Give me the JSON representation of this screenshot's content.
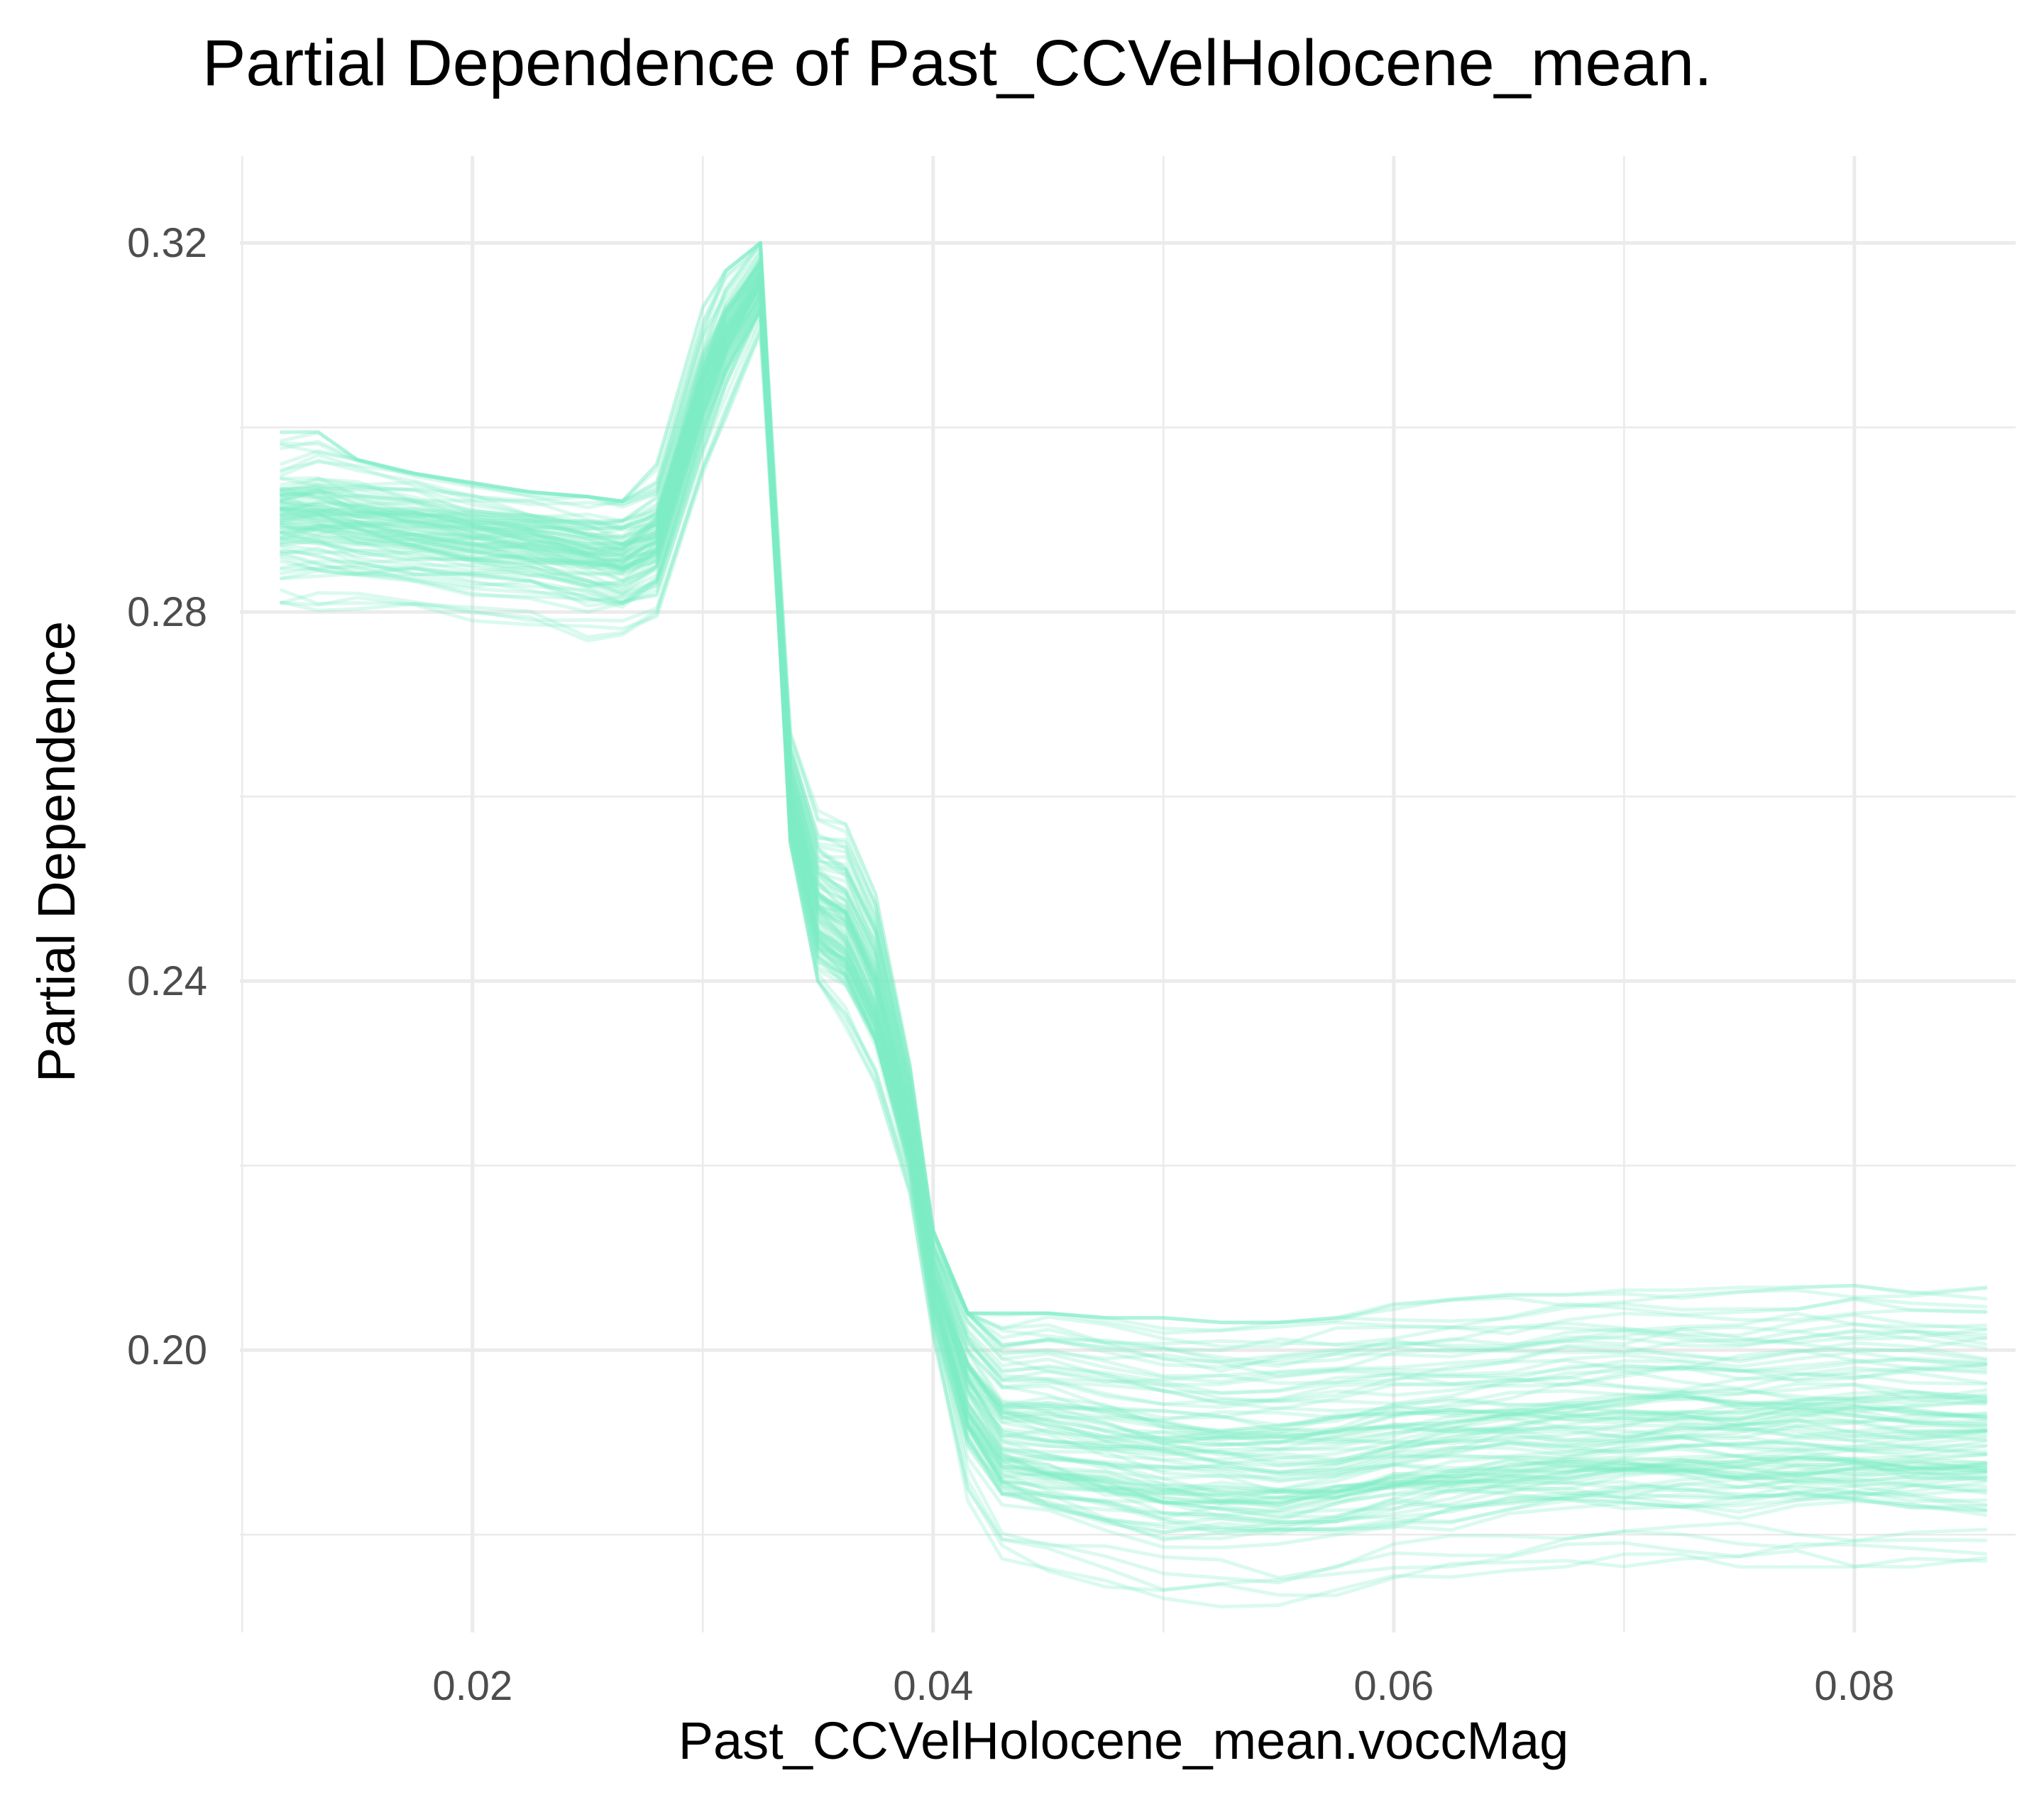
{
  "chart_data": {
    "type": "line",
    "title": "Partial Dependence of Past_CCVelHolocene_mean.",
    "xlabel": "Past_CCVelHolocene_mean.voccMag",
    "ylabel": "Partial Dependence",
    "xlim": [
      0.0099,
      0.087
    ],
    "ylim": [
      0.1694,
      0.3294
    ],
    "x_ticks": [
      "0.02",
      "0.04",
      "0.06",
      "0.08"
    ],
    "x_tick_values": [
      0.02,
      0.04,
      0.06,
      0.08
    ],
    "x_minor_values": [
      0.01,
      0.03,
      0.05,
      0.07
    ],
    "y_ticks": [
      "0.20",
      "0.24",
      "0.28",
      "0.32"
    ],
    "y_tick_values": [
      0.2,
      0.24,
      0.28,
      0.32
    ],
    "y_minor_values": [
      0.18,
      0.22,
      0.26,
      0.3
    ],
    "grid": true,
    "legend": "none",
    "line_color": "#7fecc6",
    "n_lines": 100,
    "x": [
      0.0117,
      0.0133,
      0.015,
      0.0175,
      0.02,
      0.0225,
      0.025,
      0.0265,
      0.028,
      0.03,
      0.031,
      0.0325,
      0.0338,
      0.035,
      0.0362,
      0.0375,
      0.039,
      0.04,
      0.0415,
      0.043,
      0.045,
      0.0475,
      0.05,
      0.0525,
      0.055,
      0.0575,
      0.06,
      0.0625,
      0.065,
      0.0675,
      0.07,
      0.0725,
      0.075,
      0.0775,
      0.08,
      0.0825,
      0.0857
    ],
    "mean_curve": [
      0.2905,
      0.2905,
      0.2898,
      0.2892,
      0.2882,
      0.2876,
      0.2865,
      0.286,
      0.288,
      0.304,
      0.31,
      0.316,
      0.26,
      0.248,
      0.246,
      0.239,
      0.224,
      0.208,
      0.197,
      0.192,
      0.1915,
      0.1905,
      0.1895,
      0.1892,
      0.189,
      0.1895,
      0.1905,
      0.191,
      0.1915,
      0.1918,
      0.192,
      0.1922,
      0.192,
      0.1922,
      0.1922,
      0.192,
      0.192
    ],
    "band_low": [
      0.281,
      0.28,
      0.2785,
      0.2775,
      0.277,
      0.276,
      0.275,
      0.275,
      0.279,
      0.295,
      0.3,
      0.309,
      0.255,
      0.24,
      0.235,
      0.229,
      0.217,
      0.2,
      0.179,
      0.176,
      0.173,
      0.172,
      0.171,
      0.171,
      0.1705,
      0.1715,
      0.174,
      0.175,
      0.176,
      0.176,
      0.1765,
      0.1765,
      0.1765,
      0.1765,
      0.1765,
      0.1765,
      0.1765
    ],
    "band_high": [
      0.2995,
      0.2995,
      0.2965,
      0.295,
      0.294,
      0.293,
      0.2925,
      0.292,
      0.296,
      0.313,
      0.317,
      0.32,
      0.269,
      0.26,
      0.257,
      0.25,
      0.232,
      0.213,
      0.204,
      0.204,
      0.204,
      0.2035,
      0.2035,
      0.203,
      0.203,
      0.2035,
      0.205,
      0.2055,
      0.206,
      0.206,
      0.2065,
      0.2065,
      0.2068,
      0.2068,
      0.207,
      0.207,
      0.2068
    ]
  }
}
